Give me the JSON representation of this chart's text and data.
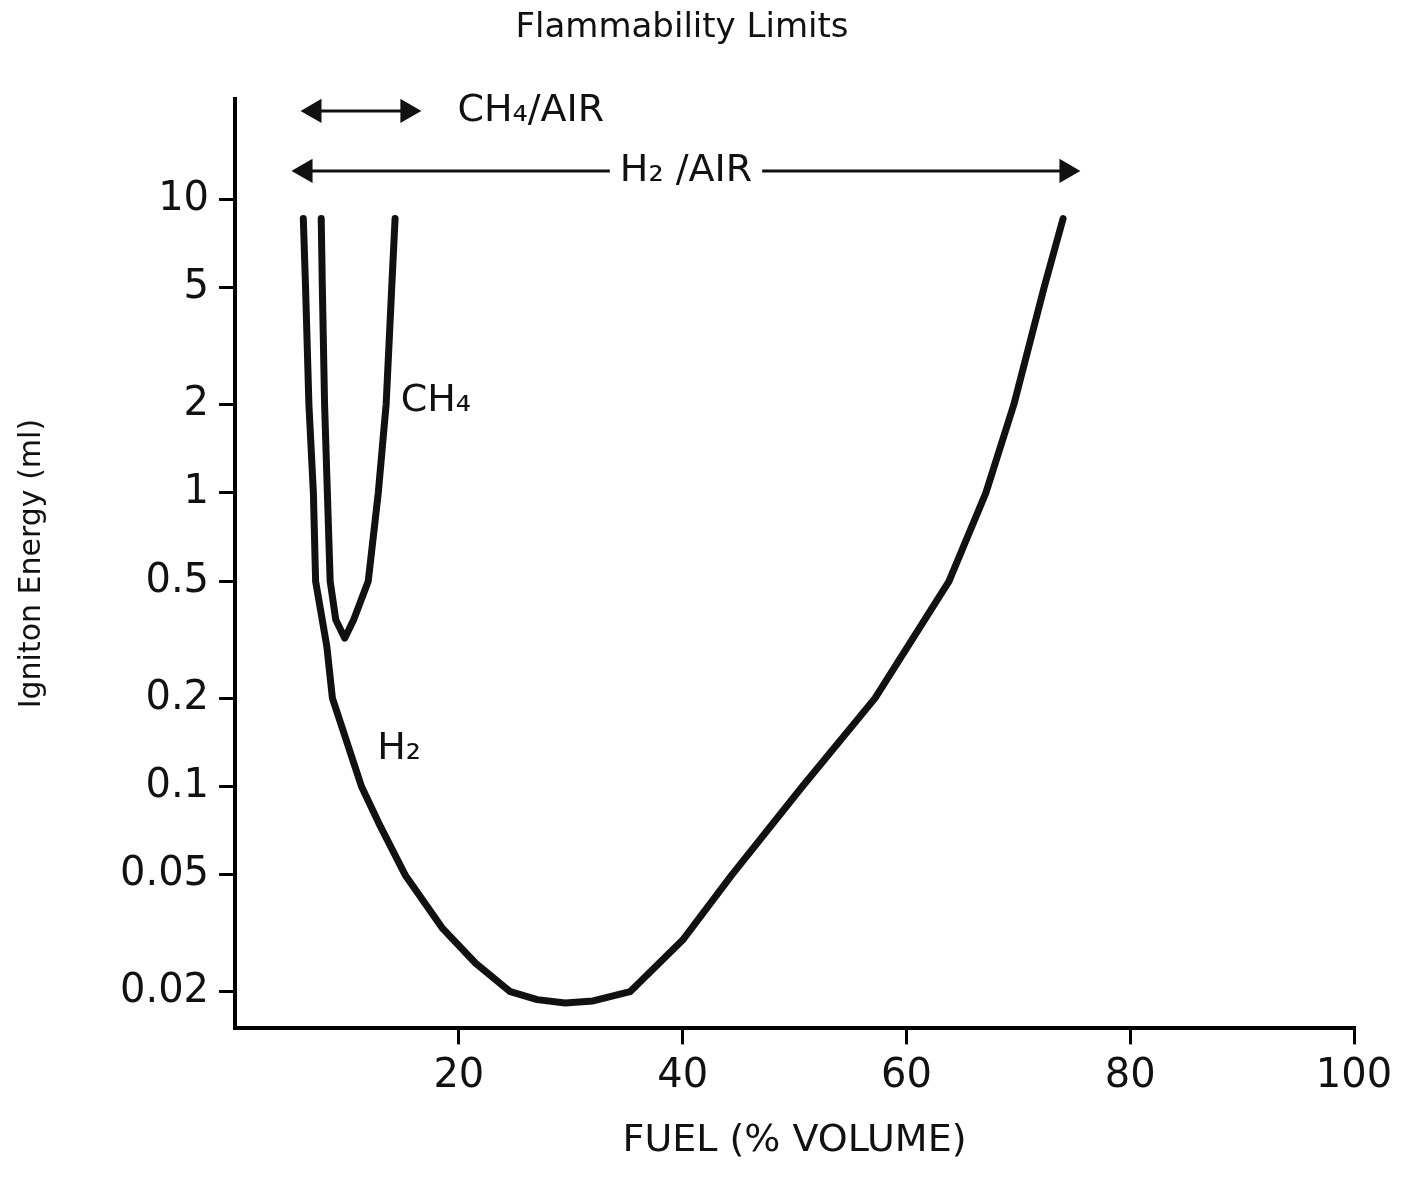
{
  "chart_data": {
    "type": "line",
    "title": "Flammability Limits",
    "xlabel": "FUEL (% VOLUME)",
    "ylabel": "Igniton Energy (ml)",
    "xlim": [
      0,
      100
    ],
    "xticks": [
      20,
      40,
      60,
      80,
      100
    ],
    "ylim": [
      0.015,
      22
    ],
    "yticks": [
      0.02,
      0.05,
      0.1,
      0.2,
      0.5,
      1,
      2,
      5,
      10
    ],
    "log": "y",
    "grid": false,
    "legend": false,
    "marker": "none",
    "line_style": "solid",
    "series": [
      {
        "color": "#111111",
        "x": [
          6.1,
          6.3,
          6.6,
          7.0,
          7.2,
          8.2,
          8.7,
          11.3,
          13.0,
          15.2,
          18.5,
          21.5,
          24.6,
          27,
          29.5,
          32,
          35.3,
          40,
          44.4,
          50.7,
          57.2,
          63.8,
          67.1,
          69.6,
          72.3,
          74.0
        ],
        "values": [
          8.6,
          5,
          2,
          1,
          0.5,
          0.3,
          0.2,
          0.1,
          0.073,
          0.05,
          0.033,
          0.025,
          0.02,
          0.0188,
          0.0183,
          0.0186,
          0.02,
          0.03,
          0.05,
          0.1,
          0.2,
          0.5,
          1,
          2,
          5,
          8.6
        ]
      },
      {
        "color": "#111111",
        "x": [
          7.7,
          7.8,
          8.0,
          8.5,
          9.0,
          9.8,
          10.6,
          11.9,
          12.8,
          13.5,
          14.0,
          14.3
        ],
        "values": [
          8.6,
          5,
          2,
          0.5,
          0.37,
          0.32,
          0.37,
          0.5,
          1,
          2,
          5,
          8.6
        ]
      },
      {
        "name": "CH₄/AIR",
        "color": "#111111",
        "marker": "triangle",
        "x": [
          7.1,
          15.4
        ],
        "values": [
          20,
          20
        ]
      },
      {
        "name": "H₂ /AIR",
        "color": "#111111",
        "marker": "triangle",
        "x": [
          6.3,
          74.3
        ],
        "values": [
          12.5,
          12.5
        ]
      }
    ],
    "annotations": [
      "CH₄",
      "H₂"
    ]
  }
}
